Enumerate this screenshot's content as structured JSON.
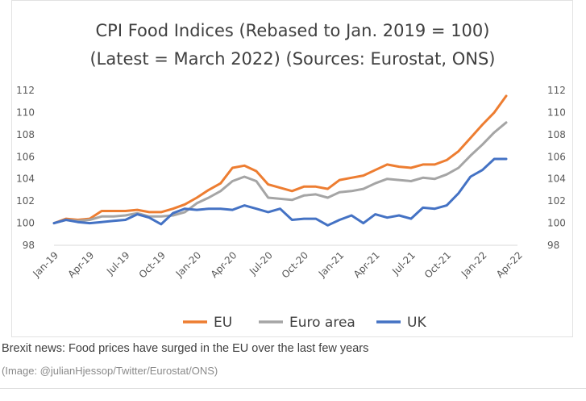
{
  "chart_data": {
    "type": "line",
    "title": "CPI Food Indices (Rebased to Jan. 2019 = 100)",
    "subtitle": "(Latest = March 2022) (Sources: Eurostat, ONS)",
    "xlabel": "",
    "ylabel": "",
    "ylim": [
      98,
      112
    ],
    "yticks": [
      "98",
      "100",
      "102",
      "104",
      "106",
      "108",
      "110",
      "112"
    ],
    "xtick_labels": [
      "Jan-19",
      "Apr-19",
      "Jul-19",
      "Oct-19",
      "Jan-20",
      "Apr-20",
      "Jul-20",
      "Oct-20",
      "Jan-21",
      "Apr-21",
      "Jul-21",
      "Oct-21",
      "Jan-22",
      "Apr-22"
    ],
    "x": [
      "Jan-19",
      "Feb-19",
      "Mar-19",
      "Apr-19",
      "May-19",
      "Jun-19",
      "Jul-19",
      "Aug-19",
      "Sep-19",
      "Oct-19",
      "Nov-19",
      "Dec-19",
      "Jan-20",
      "Feb-20",
      "Mar-20",
      "Apr-20",
      "May-20",
      "Jun-20",
      "Jul-20",
      "Aug-20",
      "Sep-20",
      "Oct-20",
      "Nov-20",
      "Dec-20",
      "Jan-21",
      "Feb-21",
      "Mar-21",
      "Apr-21",
      "May-21",
      "Jun-21",
      "Jul-21",
      "Aug-21",
      "Sep-21",
      "Oct-21",
      "Nov-21",
      "Dec-21",
      "Jan-22",
      "Feb-22",
      "Mar-22"
    ],
    "grid": false,
    "legend_position": "bottom",
    "series": [
      {
        "name": "EU",
        "color": "#ed7d31",
        "values": [
          100,
          100.4,
          100.3,
          100.4,
          101.1,
          101.1,
          101.1,
          101.2,
          101.0,
          101.0,
          101.3,
          101.7,
          102.3,
          103.0,
          103.6,
          105.0,
          105.2,
          104.7,
          103.5,
          103.2,
          102.9,
          103.3,
          103.3,
          103.1,
          103.9,
          104.1,
          104.3,
          104.8,
          105.3,
          105.1,
          105.0,
          105.3,
          105.3,
          105.7,
          106.5,
          107.7,
          108.9,
          110.0,
          111.5
        ]
      },
      {
        "name": "Euro area",
        "color": "#a5a5a5",
        "values": [
          100,
          100.3,
          100.2,
          100.3,
          100.6,
          100.6,
          100.7,
          100.9,
          100.6,
          100.6,
          100.7,
          101.0,
          101.8,
          102.3,
          102.9,
          103.8,
          104.2,
          103.8,
          102.3,
          102.2,
          102.1,
          102.5,
          102.6,
          102.3,
          102.8,
          102.9,
          103.1,
          103.6,
          104.0,
          103.9,
          103.8,
          104.1,
          104.0,
          104.4,
          105.0,
          106.1,
          107.1,
          108.2,
          109.1
        ]
      },
      {
        "name": "UK",
        "color": "#4472c4",
        "values": [
          100,
          100.3,
          100.1,
          100.0,
          100.1,
          100.2,
          100.3,
          100.8,
          100.5,
          99.9,
          100.9,
          101.3,
          101.2,
          101.3,
          101.3,
          101.2,
          101.6,
          101.3,
          101.0,
          101.3,
          100.3,
          100.4,
          100.4,
          99.8,
          100.3,
          100.7,
          100.0,
          100.8,
          100.5,
          100.7,
          100.4,
          101.4,
          101.3,
          101.6,
          102.7,
          104.2,
          104.8,
          105.8,
          105.8
        ]
      }
    ]
  },
  "caption": {
    "text": "Brexit news: Food prices have surged in the EU over the last few years",
    "credit": "(Image: @julianHjessop/Twitter/Eurostat/ONS)"
  }
}
